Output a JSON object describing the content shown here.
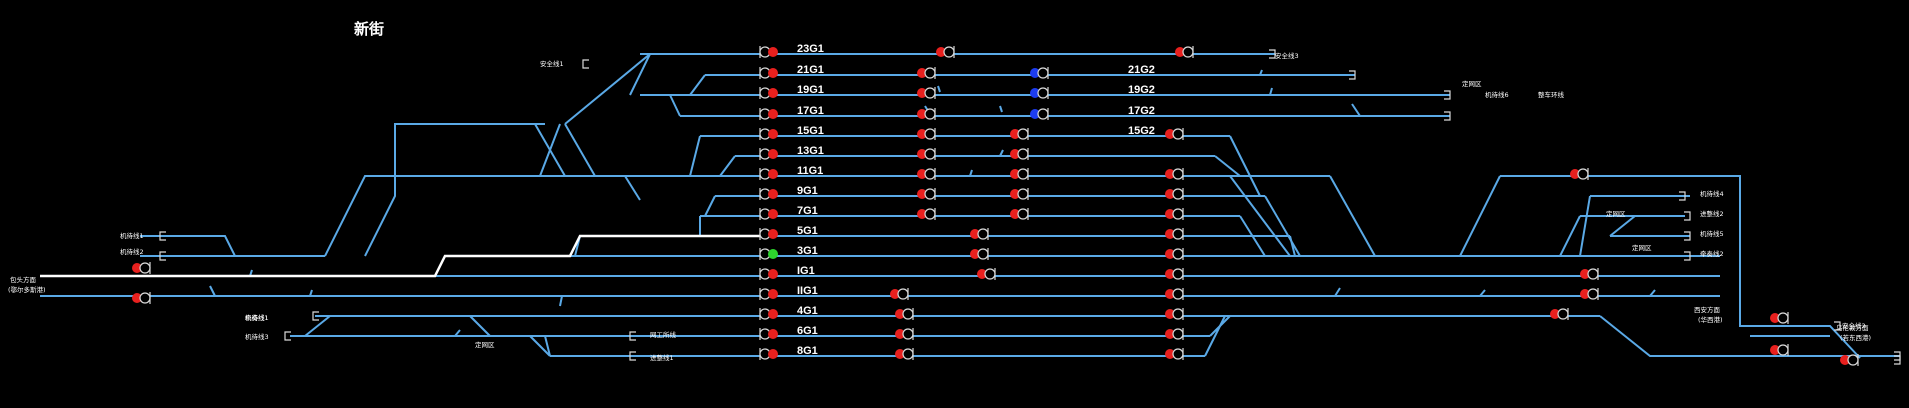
{
  "station": {
    "title": "新街"
  },
  "colors": {
    "background": "#000000",
    "track": "#5aa9e6",
    "route": "#ffffff",
    "signal_red": "#e8201e",
    "signal_green": "#2dd62d",
    "signal_blue": "#1c3cf0"
  },
  "tracks": [
    {
      "id": "23G1",
      "label": "23G1",
      "signal": "red"
    },
    {
      "id": "21G1",
      "label": "21G1",
      "signal": "red"
    },
    {
      "id": "21G2",
      "label": "21G2"
    },
    {
      "id": "19G1",
      "label": "19G1",
      "signal": "red"
    },
    {
      "id": "19G2",
      "label": "19G2"
    },
    {
      "id": "17G1",
      "label": "17G1",
      "signal": "red"
    },
    {
      "id": "17G2",
      "label": "17G2"
    },
    {
      "id": "15G1",
      "label": "15G1",
      "signal": "red"
    },
    {
      "id": "15G2",
      "label": "15G2"
    },
    {
      "id": "13G1",
      "label": "13G1",
      "signal": "red"
    },
    {
      "id": "11G1",
      "label": "11G1",
      "signal": "red"
    },
    {
      "id": "9G1",
      "label": "9G1",
      "signal": "red"
    },
    {
      "id": "7G1",
      "label": "7G1",
      "signal": "red"
    },
    {
      "id": "5G1",
      "label": "5G1",
      "signal": "red"
    },
    {
      "id": "3G1",
      "label": "3G1",
      "signal": "green"
    },
    {
      "id": "IG1",
      "label": "IG1",
      "signal": "red"
    },
    {
      "id": "IIG1",
      "label": "IIG1",
      "signal": "red"
    },
    {
      "id": "4G1",
      "label": "4G1",
      "signal": "red"
    },
    {
      "id": "6G1",
      "label": "6G1",
      "signal": "red"
    },
    {
      "id": "8G1",
      "label": "8G1",
      "signal": "red"
    }
  ],
  "side_lines": {
    "safety_1": "安全线1",
    "safety_3": "安全线3",
    "safety_2": "安全线2",
    "shunting_1": "机待线1",
    "shunting_2": "机待线2",
    "shunting_3": "机待线3",
    "shunting_4": "机待线4",
    "shunting_5": "机待线5",
    "shunting_6": "机待线6",
    "fixed_zone_a": "定网区",
    "fixed_zone_b": "定网区",
    "fixed_zone_c": "定网区",
    "fixed_zone_d": "定网区",
    "fixed_zone_e": "定网区",
    "parking_loop": "整车环线",
    "entry_2": "进整线2",
    "entry_1": "进整线1",
    "repair_2": "牵奏线2",
    "repair_1": "牵奏线1",
    "workshop_line": "网工所线"
  },
  "directions": {
    "west_line1": "包头方面",
    "west_line2": "(鄂尔多斯港)",
    "east_a_line1": "西安方面",
    "east_a_line2": "(华西港)",
    "east_b_line1": "乌伦敦方面",
    "east_b_line2": "(若东西港)"
  }
}
